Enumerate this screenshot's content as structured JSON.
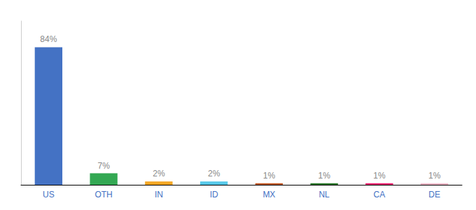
{
  "chart_data": {
    "type": "bar",
    "categories": [
      "US",
      "OTH",
      "IN",
      "ID",
      "MX",
      "NL",
      "CA",
      "DE"
    ],
    "values": [
      84,
      7,
      2,
      2,
      1,
      1,
      1,
      1
    ],
    "value_labels": [
      "84%",
      "7%",
      "2%",
      "2%",
      "1%",
      "1%",
      "1%",
      "1%"
    ],
    "colors": [
      "#4472c4",
      "#33a853",
      "#f5a623",
      "#56c8e8",
      "#c05820",
      "#2d7a2d",
      "#e8196e",
      "#f4b8c8"
    ],
    "ylim": [
      0,
      100
    ],
    "data_labels": true,
    "tick_labels": "x",
    "grid": false
  }
}
